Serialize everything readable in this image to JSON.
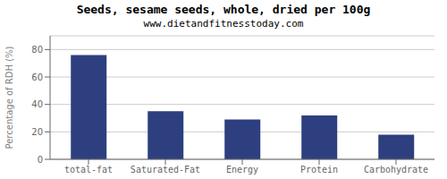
{
  "chart_data": {
    "type": "bar",
    "title": "Seeds, sesame seeds, whole, dried per 100g",
    "subtitle": "www.dietandfitnesstoday.com",
    "categories": [
      "total-fat",
      "Saturated-Fat",
      "Energy",
      "Protein",
      "Carbohydrate"
    ],
    "values": [
      76,
      35,
      29,
      32,
      18
    ],
    "color": "#2e3f7f",
    "ylabel": "Percentage of RDH (%)",
    "ylim": [
      0,
      90
    ],
    "yticks": [
      0,
      20,
      40,
      60,
      80
    ],
    "grid": true
  }
}
